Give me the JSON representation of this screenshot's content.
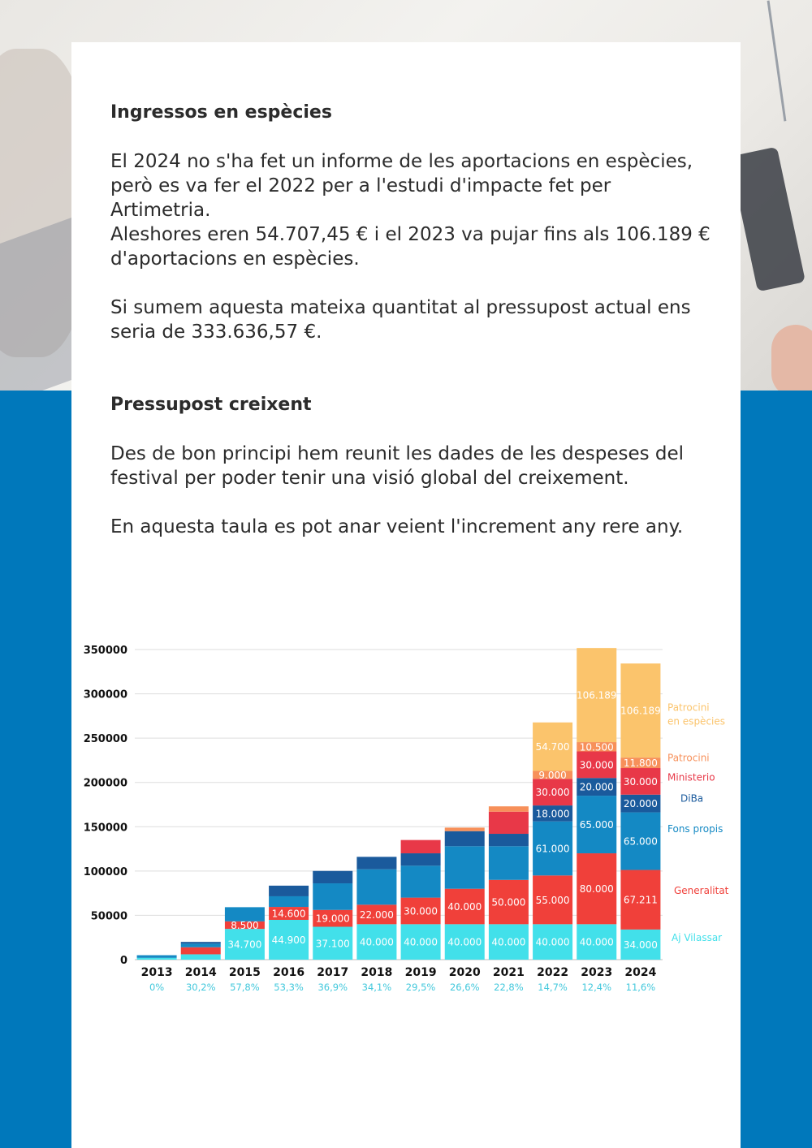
{
  "section1": {
    "title": "Ingressos en espècies",
    "p1": "El 2024 no s'ha fet un informe de les aportacions en espècies, però es va fer el 2022 per a l'estudi d'impacte fet per Artimetria.",
    "p2": "Aleshores eren 54.707,45 € i el 2023 va pujar fins als 106.189 € d'aportacions en espècies.",
    "p3": "Si sumem aquesta mateixa quantitat al pressupost actual ens seria de 333.636,57 €."
  },
  "section2": {
    "title": "Pressupost creixent",
    "p1": "Des de bon principi hem reunit les dades de les despeses del festival per poder tenir una visió global del creixement.",
    "p2": "En aquesta taula es pot anar veient l'increment any rere any."
  },
  "colors": {
    "aj_vilassar": "#42e0ea",
    "generalitat": "#f0403a",
    "fons_propis": "#1489c4",
    "diba": "#1a5a9c",
    "ministerio": "#e83848",
    "patrocini": "#f7905a",
    "especies": "#fbc46c",
    "pct": "#42c8dc",
    "grid": "#dddddd"
  },
  "chart_data": {
    "type": "bar",
    "stacked": true,
    "categories": [
      "2013",
      "2014",
      "2015",
      "2016",
      "2017",
      "2018",
      "2019",
      "2020",
      "2021",
      "2022",
      "2023",
      "2024"
    ],
    "ylim": [
      0,
      350000
    ],
    "yticks": [
      0,
      50000,
      100000,
      150000,
      200000,
      250000,
      300000,
      350000
    ],
    "ytick_labels": [
      "0",
      "50000",
      "100000",
      "150000",
      "200000",
      "250000",
      "300000",
      "350000"
    ],
    "series": [
      {
        "name": "Aj Vilassar",
        "key": "aj_vilassar",
        "values": [
          2000,
          6000,
          34700,
          44900,
          37100,
          40000,
          40000,
          40000,
          40000,
          40000,
          40000,
          34000
        ],
        "labels": [
          "",
          "",
          "34.700",
          "44.900",
          "37.100",
          "40.000",
          "40.000",
          "40.000",
          "40.000",
          "40.000",
          "40.000",
          "34.000"
        ]
      },
      {
        "name": "Generalitat",
        "key": "generalitat",
        "values": [
          0,
          8000,
          8500,
          14600,
          19000,
          22000,
          30000,
          40000,
          50000,
          55000,
          80000,
          67211
        ],
        "labels": [
          "",
          "",
          "8.500",
          "14.600",
          "19.000",
          "22.000",
          "30.000",
          "40.000",
          "50.000",
          "55.000",
          "80.000",
          "67.211"
        ]
      },
      {
        "name": "Fons propis",
        "key": "fons_propis",
        "values": [
          3000,
          4000,
          16000,
          12000,
          30000,
          40000,
          36000,
          48000,
          38000,
          61000,
          65000,
          65000
        ],
        "labels": [
          "",
          "",
          "",
          "",
          "",
          "",
          "",
          "",
          "",
          "61.000",
          "65.000",
          "65.000"
        ]
      },
      {
        "name": "DiBa",
        "key": "diba",
        "values": [
          0,
          2000,
          0,
          12000,
          14000,
          14000,
          14000,
          17000,
          14000,
          18000,
          20000,
          20000
        ],
        "labels": [
          "",
          "",
          "",
          "",
          "",
          "",
          "",
          "",
          "",
          "18.000",
          "20.000",
          "20.000"
        ]
      },
      {
        "name": "Ministerio",
        "key": "ministerio",
        "values": [
          0,
          0,
          0,
          0,
          0,
          0,
          15000,
          0,
          25000,
          30000,
          30000,
          30000
        ],
        "labels": [
          "",
          "",
          "",
          "",
          "",
          "",
          "",
          "",
          "",
          "30.000",
          "30.000",
          "30.000"
        ]
      },
      {
        "name": "Patrocini",
        "key": "patrocini",
        "values": [
          0,
          0,
          0,
          0,
          0,
          0,
          0,
          4000,
          6000,
          9000,
          10500,
          11800
        ],
        "labels": [
          "",
          "",
          "",
          "",
          "",
          "",
          "",
          "",
          "",
          "9.000",
          "10.500",
          "11.800"
        ]
      },
      {
        "name": "Patrocini en espècies",
        "key": "especies",
        "values": [
          0,
          0,
          0,
          0,
          0,
          0,
          0,
          0,
          0,
          54700,
          106189,
          106189
        ],
        "labels": [
          "",
          "",
          "",
          "",
          "",
          "",
          "",
          "",
          "",
          "54.700",
          "106.189",
          "106.189"
        ]
      }
    ],
    "growth": [
      "0%",
      "30,2%",
      "57,8%",
      "53,3%",
      "36,9%",
      "34,1%",
      "29,5%",
      "26,6%",
      "22,8%",
      "14,7%",
      "12,4%",
      "11,6%"
    ],
    "legend": [
      {
        "lines": [
          "Patrocini",
          "en espècies"
        ],
        "key": "especies",
        "value": 281000
      },
      {
        "lines": [
          "Patrocini"
        ],
        "key": "patrocini",
        "value": 224000
      },
      {
        "lines": [
          "Ministerio"
        ],
        "key": "ministerio",
        "value": 202000
      },
      {
        "lines": [
          "DiBa"
        ],
        "key": "diba",
        "value": 178000
      },
      {
        "lines": [
          "Fons propis"
        ],
        "key": "fons_propis",
        "value": 144000
      },
      {
        "lines": [
          "Generalitat"
        ],
        "key": "generalitat",
        "value": 74000
      },
      {
        "lines": [
          "Aj Vilassar"
        ],
        "key": "aj_vilassar",
        "value": 21000
      }
    ]
  }
}
